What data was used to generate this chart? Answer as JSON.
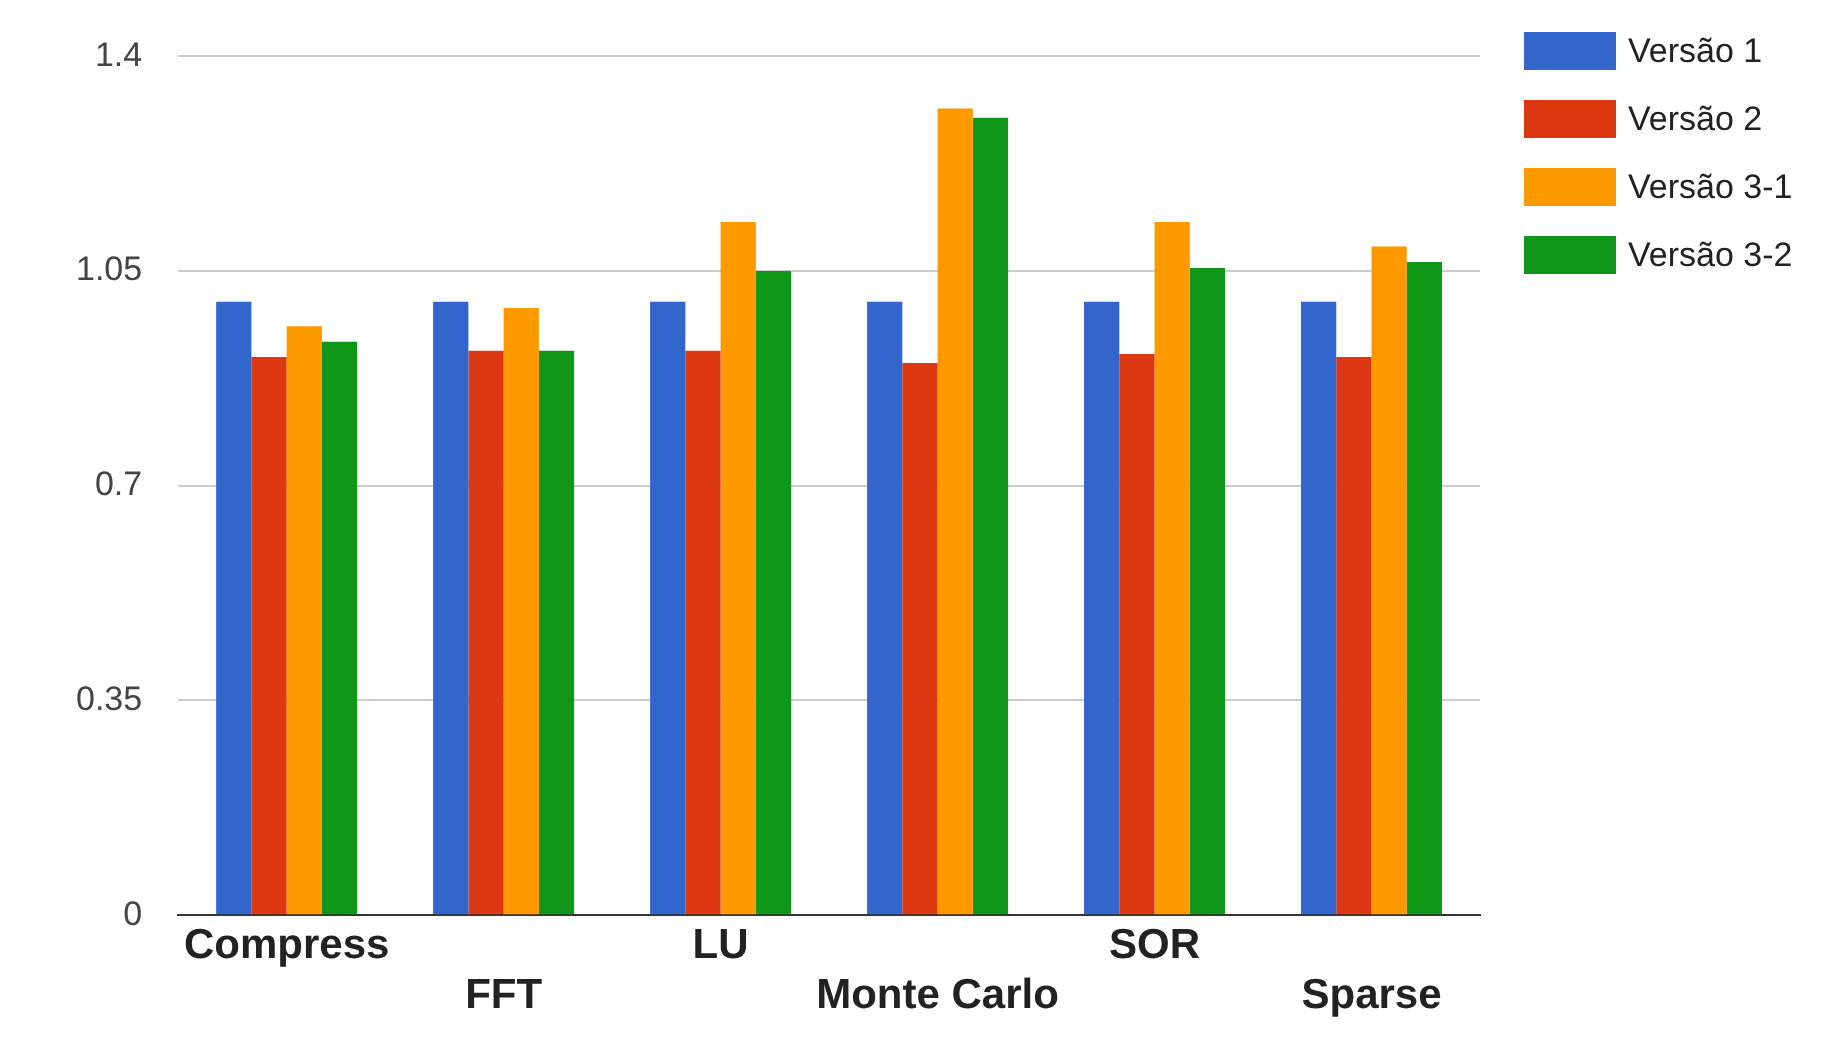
{
  "chart_data": {
    "type": "bar",
    "categories": [
      "Compress",
      "FFT",
      "LU",
      "Monte Carlo",
      "SOR",
      "Sparse"
    ],
    "series": [
      {
        "name": "Versão 1",
        "color": "#3366cc",
        "values": [
          1.0,
          1.0,
          1.0,
          1.0,
          1.0,
          1.0
        ]
      },
      {
        "name": "Versão 2",
        "color": "#dc3912",
        "values": [
          0.91,
          0.92,
          0.92,
          0.9,
          0.915,
          0.91
        ]
      },
      {
        "name": "Versão 3-1",
        "color": "#ff9900",
        "values": [
          0.96,
          0.99,
          1.13,
          1.315,
          1.13,
          1.09
        ]
      },
      {
        "name": "Versão 3-2",
        "color": "#109618",
        "values": [
          0.935,
          0.92,
          1.05,
          1.3,
          1.055,
          1.065
        ]
      }
    ],
    "ylim": [
      0,
      1.4
    ],
    "yticks": [
      0,
      0.35,
      0.7,
      1.05,
      1.4
    ],
    "grid": "y",
    "legend": "top right"
  }
}
